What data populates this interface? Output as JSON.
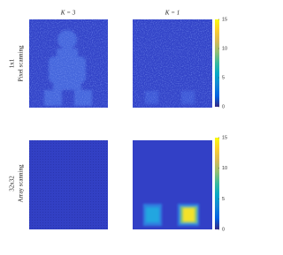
{
  "figure": {
    "columns": [
      "K = 3",
      "K = 1"
    ],
    "rows": [
      {
        "label": "1x1",
        "sublabel": "Pixel scanning"
      },
      {
        "label": "32x32",
        "sublabel": "Array scanning"
      }
    ],
    "colorbar": {
      "lim": [
        0,
        15
      ],
      "ticks": [
        0,
        5,
        10,
        15
      ],
      "colormap": "parula"
    }
  }
}
